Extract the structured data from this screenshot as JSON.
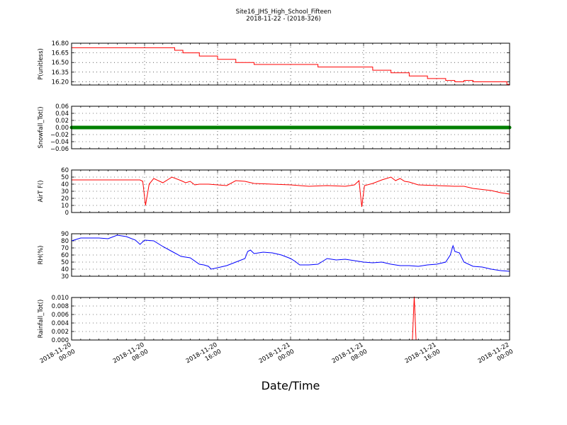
{
  "chart_data": {
    "type": "line",
    "title": "Site16_JHS_High_School_Fifteen",
    "subtitle": "2018-11-22 - (2018-326)",
    "xlabel": "Date/Time",
    "x_ticks": [
      {
        "line1": "2018-11-20",
        "line2": "00:00",
        "hours": 0
      },
      {
        "line1": "2018-11-20",
        "line2": "08:00",
        "hours": 8
      },
      {
        "line1": "2018-11-20",
        "line2": "16:00",
        "hours": 16
      },
      {
        "line1": "2018-11-21",
        "line2": "00:00",
        "hours": 24
      },
      {
        "line1": "2018-11-21",
        "line2": "08:00",
        "hours": 32
      },
      {
        "line1": "2018-11-21",
        "line2": "16:00",
        "hours": 40
      },
      {
        "line1": "2018-11-22",
        "line2": "00:00",
        "hours": 48
      }
    ],
    "xlim_hours": [
      0,
      48
    ],
    "grid": true,
    "panels": [
      {
        "ylabel": "P(unitless)",
        "ylim": [
          16.15,
          16.8
        ],
        "yticks": [
          "16.20",
          "16.35",
          "16.50",
          "16.65",
          "16.80"
        ],
        "ytick_values": [
          16.2,
          16.35,
          16.5,
          16.65,
          16.8
        ],
        "color": "#ff0000",
        "style": "step",
        "series": {
          "x": [
            0,
            2,
            4,
            6,
            8,
            10,
            11.3,
            12.2,
            13,
            14,
            15,
            16,
            17,
            18,
            19,
            20,
            21,
            22,
            23,
            24,
            25,
            26,
            27,
            28,
            29,
            30,
            31,
            32,
            33,
            34,
            35,
            36,
            37,
            38,
            39,
            40,
            41,
            42,
            43,
            44,
            45,
            46,
            47,
            47.7,
            48
          ],
          "y": [
            16.73,
            16.73,
            16.73,
            16.73,
            16.73,
            16.73,
            16.69,
            16.65,
            16.65,
            16.6,
            16.6,
            16.55,
            16.55,
            16.5,
            16.5,
            16.47,
            16.47,
            16.47,
            16.47,
            16.47,
            16.47,
            16.47,
            16.43,
            16.43,
            16.43,
            16.43,
            16.43,
            16.43,
            16.38,
            16.38,
            16.34,
            16.34,
            16.29,
            16.29,
            16.25,
            16.25,
            16.22,
            16.2,
            16.22,
            16.2,
            16.2,
            16.2,
            16.2,
            16.16,
            16.18
          ]
        }
      },
      {
        "ylabel": "Snowfall_Tot()",
        "ylim": [
          -0.06,
          0.06
        ],
        "yticks": [
          "−0.06",
          "−0.04",
          "−0.02",
          "0.00",
          "0.02",
          "0.04",
          "0.06"
        ],
        "ytick_values": [
          -0.06,
          -0.04,
          -0.02,
          0.0,
          0.02,
          0.04,
          0.06
        ],
        "color": "#008000",
        "style": "dots",
        "series": {
          "x": [
            0,
            48
          ],
          "y": [
            0,
            0
          ]
        }
      },
      {
        "ylabel": "AirT F()",
        "ylim": [
          0,
          60
        ],
        "yticks": [
          "0",
          "10",
          "20",
          "30",
          "40",
          "50",
          "60"
        ],
        "ytick_values": [
          0,
          10,
          20,
          30,
          40,
          50,
          60
        ],
        "color": "#ff0000",
        "style": "line",
        "series": {
          "x": [
            0,
            2,
            4,
            6,
            7,
            7.5,
            7.8,
            8.1,
            8.5,
            9,
            10,
            11,
            12,
            12.5,
            13,
            13.5,
            14,
            15,
            16,
            17,
            18,
            19,
            20,
            22,
            24,
            26,
            28,
            30,
            31,
            31.5,
            31.8,
            32.1,
            33,
            34,
            35,
            35.5,
            36,
            36.5,
            37,
            38,
            40,
            42,
            43,
            44,
            46,
            47,
            48
          ],
          "y": [
            46,
            46,
            46,
            46,
            46,
            46,
            44,
            10,
            40,
            48,
            42,
            50,
            45,
            42,
            44,
            39,
            40,
            40,
            39,
            38,
            45,
            44,
            41,
            40,
            39,
            37,
            38,
            37,
            39,
            45,
            8,
            38,
            41,
            46,
            50,
            45,
            48,
            44,
            43,
            39,
            38,
            37,
            37,
            34,
            31,
            28,
            26
          ]
        }
      },
      {
        "ylabel": "RH(%)",
        "ylim": [
          30,
          90
        ],
        "yticks": [
          "30",
          "40",
          "50",
          "60",
          "70",
          "80",
          "90"
        ],
        "ytick_values": [
          30,
          40,
          50,
          60,
          70,
          80,
          90
        ],
        "color": "#0000ff",
        "style": "line",
        "series": {
          "x": [
            0,
            1,
            2,
            3,
            4,
            5,
            6,
            7,
            7.5,
            8,
            9,
            10,
            11,
            12,
            13,
            14,
            14.5,
            15,
            15.3,
            16,
            17,
            18,
            19,
            19.3,
            19.6,
            20,
            21,
            22,
            23,
            24,
            24.5,
            25,
            26,
            27,
            28,
            29,
            30,
            31,
            32,
            33,
            34,
            35,
            36,
            37,
            38,
            39,
            40,
            41,
            41.5,
            41.8,
            42,
            42.5,
            43,
            44,
            45,
            46,
            47,
            48
          ],
          "y": [
            80,
            84,
            84,
            84,
            83,
            88,
            86,
            81,
            75,
            81,
            80,
            72,
            65,
            58,
            56,
            47,
            46,
            44,
            40,
            42,
            45,
            50,
            55,
            65,
            67,
            62,
            64,
            63,
            60,
            55,
            51,
            46,
            46,
            47,
            55,
            53,
            54,
            52,
            50,
            49,
            50,
            47,
            45,
            45,
            44,
            46,
            47,
            50,
            60,
            73,
            65,
            63,
            50,
            44,
            43,
            40,
            38,
            37
          ]
        }
      },
      {
        "ylabel": "Rainfall_Tot()",
        "ylim": [
          0,
          0.01
        ],
        "yticks": [
          "0.000",
          "0.002",
          "0.004",
          "0.006",
          "0.008",
          "0.010"
        ],
        "ytick_values": [
          0,
          0.002,
          0.004,
          0.006,
          0.008,
          0.01
        ],
        "color": "#ff0000",
        "style": "line",
        "series": {
          "x": [
            0,
            37.35,
            37.55,
            37.75,
            48
          ],
          "y": [
            0,
            0,
            0.0102,
            0,
            0
          ]
        }
      }
    ]
  }
}
